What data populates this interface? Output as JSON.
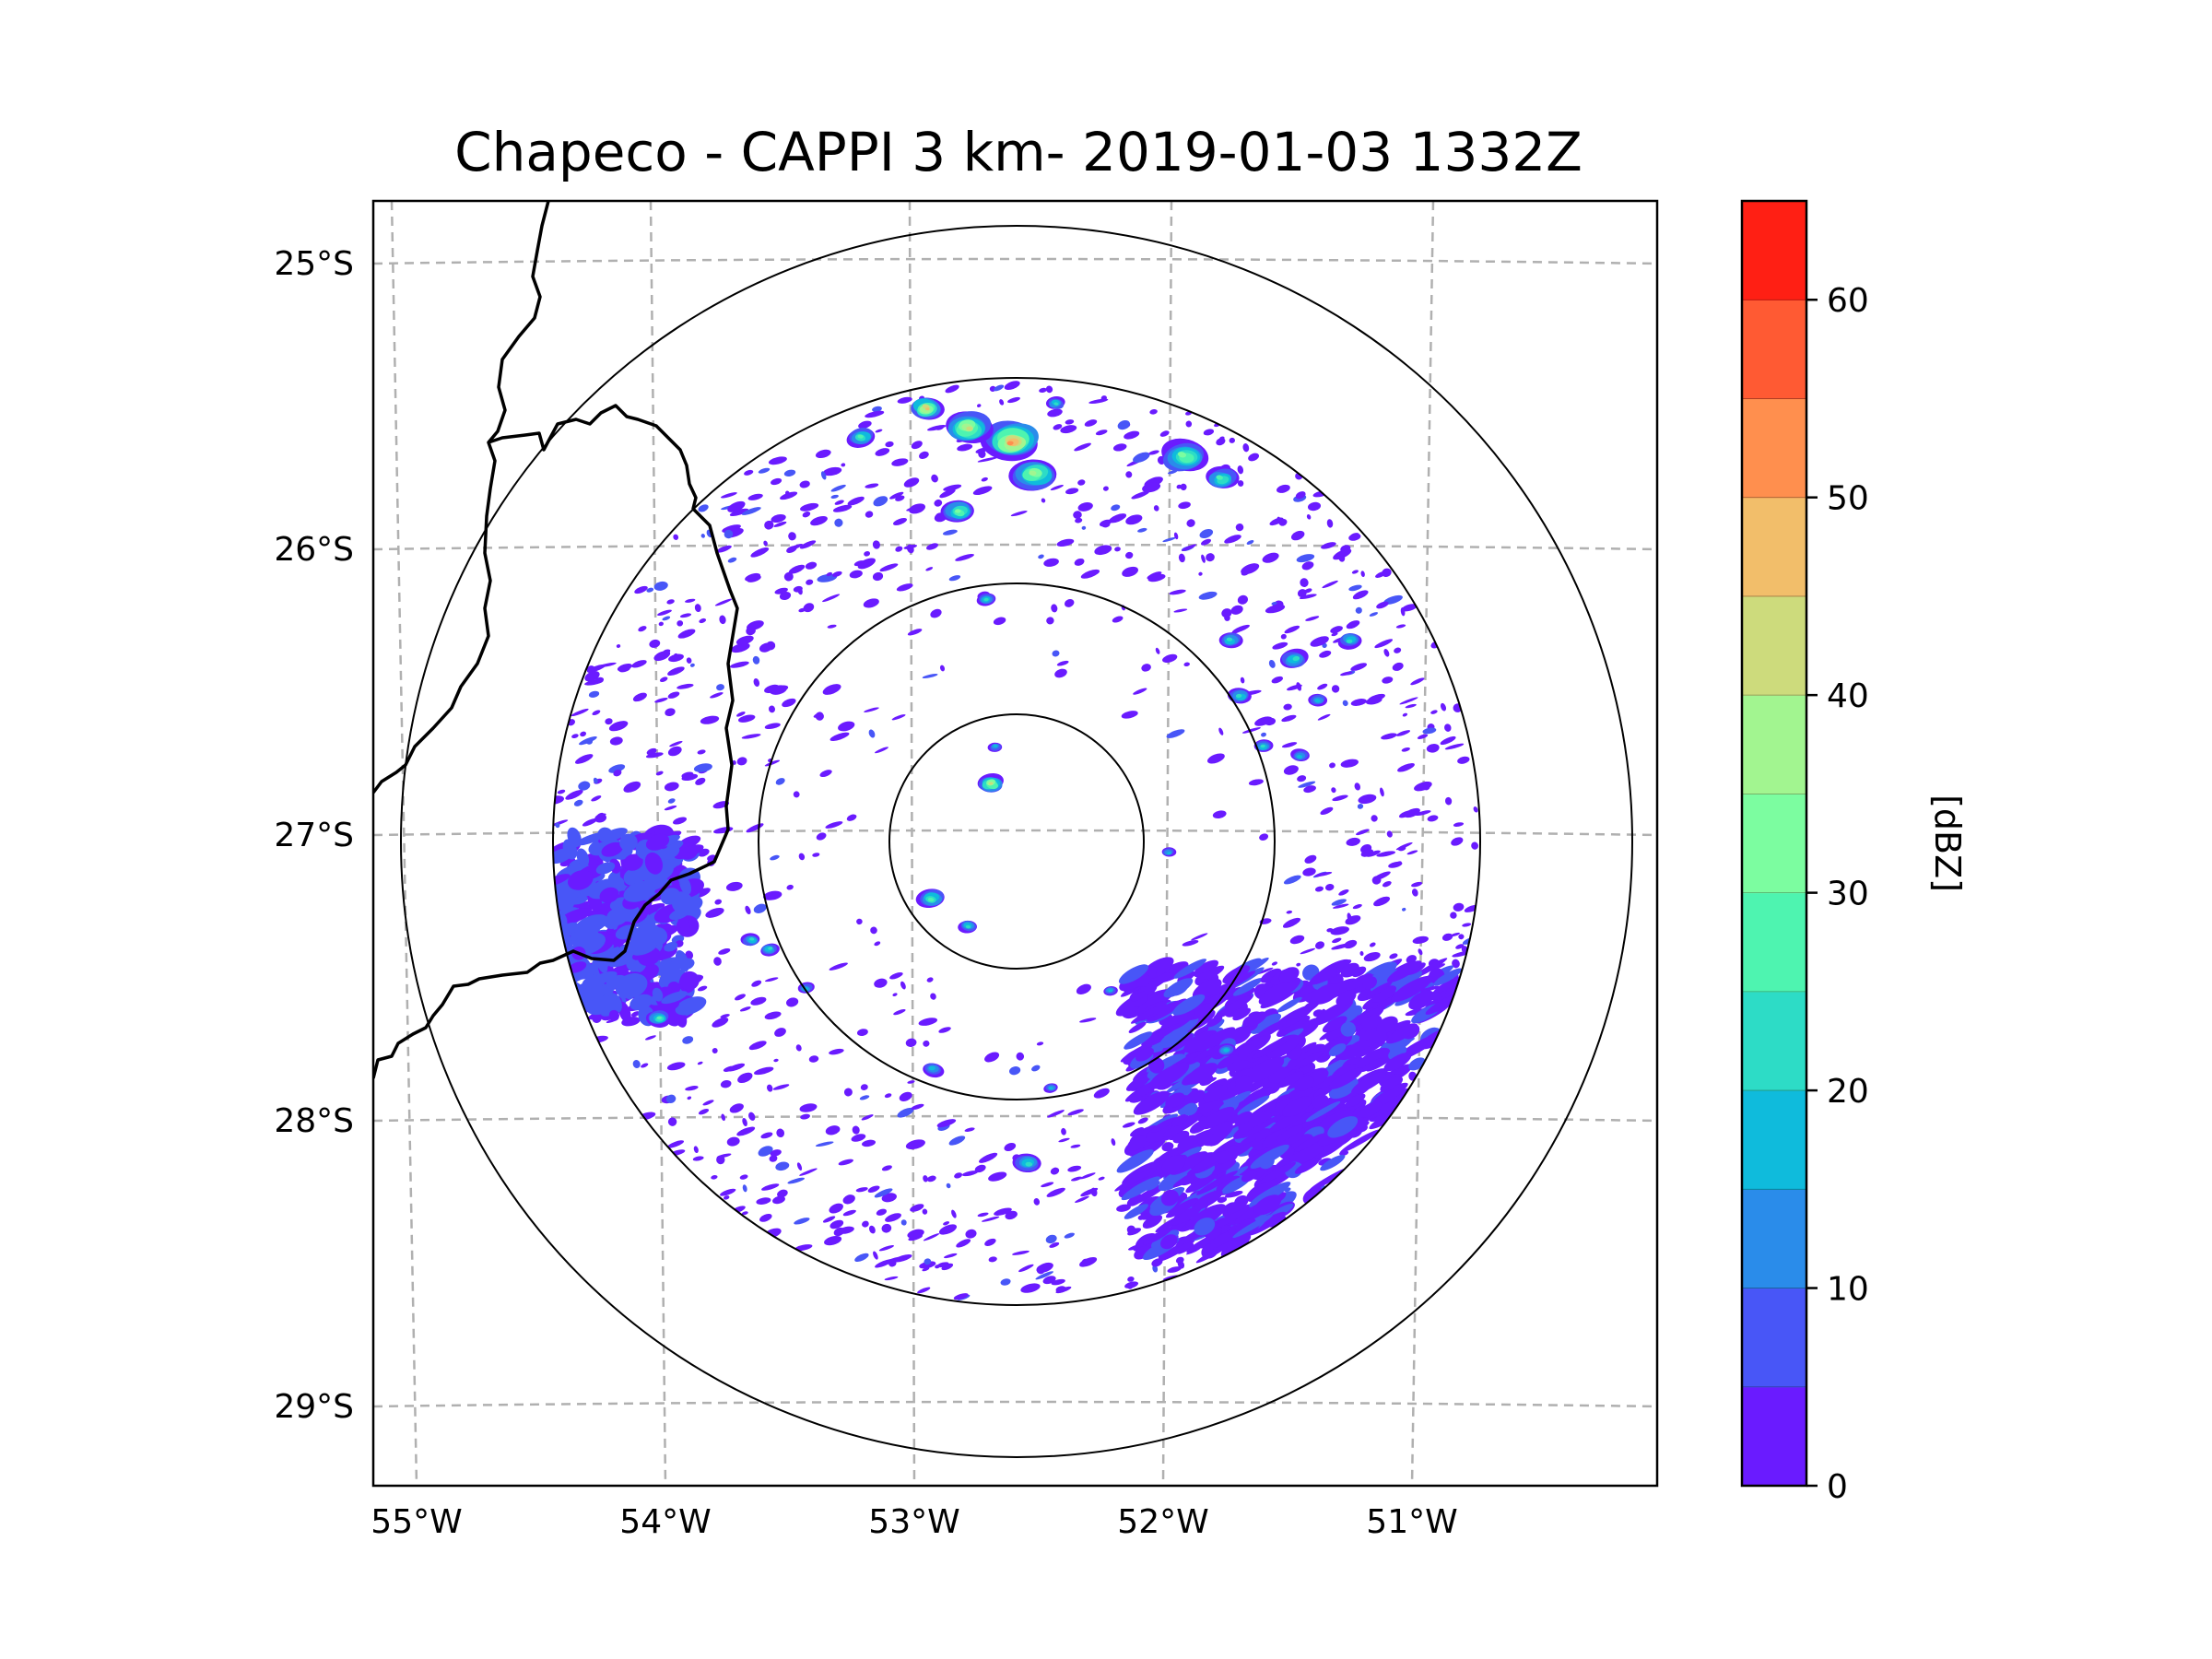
{
  "title": "Chapeco - CAPPI 3 km- 2019-01-03 1332Z",
  "map": {
    "lat_labels": [
      "25°S",
      "26°S",
      "27°S",
      "28°S",
      "29°S"
    ],
    "lon_labels": [
      "55°W",
      "54°W",
      "53°W",
      "52°W",
      "51°W"
    ],
    "radar_site": "Chapeco",
    "range_rings": 4
  },
  "colorbar": {
    "label": "[dBZ]",
    "ticks": [
      "0",
      "10",
      "20",
      "30",
      "40",
      "50",
      "60"
    ],
    "min": 0,
    "max": 65,
    "step": 5,
    "colors": [
      "#6a1bff",
      "#4856f7",
      "#2a8cea",
      "#0fbbdc",
      "#2ddcc6",
      "#4ef4b0",
      "#7cfda0",
      "#a2f590",
      "#cddb7c",
      "#f2be6a",
      "#ff8f4e",
      "#ff5a33",
      "#ff1f14"
    ]
  }
}
